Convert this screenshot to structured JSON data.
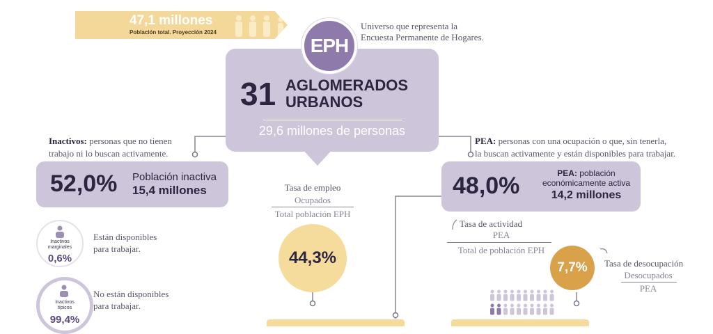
{
  "banner": {
    "value": "47,1 millones",
    "caption": "Población total. Proyección 2024",
    "icon": "people-icon",
    "color": "#f4d89a"
  },
  "eph": {
    "badge": "EPH",
    "desc_line1": "Universo que representa la",
    "desc_line2": "Encuesta Permanente de Hogares."
  },
  "main": {
    "number": "31",
    "label_line1": "AGLOMERADOS",
    "label_line2": "URBANOS",
    "persons": "29,6 millones de personas"
  },
  "inactive": {
    "def_term": "Inactivos:",
    "def_rest": " personas que no tienen",
    "def_line2": "trabajo ni lo buscan activamente.",
    "pct": "52,0%",
    "label": "Población inactiva",
    "value": "15,4 millones"
  },
  "pea": {
    "def_term": "PEA:",
    "def_rest": " personas con una ocupación o que, sin tenerla,",
    "def_line2": "la buscan activamente y están disponibles para trabajar.",
    "pct": "48,0%",
    "label_term": "PEA:",
    "label_rest": " población",
    "label_line2": "económicamente activa",
    "value": "14,2 millones"
  },
  "employment": {
    "title": "Tasa de empleo",
    "numerator": "Ocupados",
    "denominator": "Total población EPH",
    "pct": "44,3%"
  },
  "activity": {
    "title": "Tasa de actividad",
    "numerator": "PEA",
    "denominator": "Total de población EPH"
  },
  "unemployment": {
    "title": "Tasa de desocupación",
    "numerator": "Desocupados",
    "denominator": "PEA",
    "pct": "7,7%"
  },
  "marginal": {
    "label_line1": "Inactivos",
    "label_line2": "marginales",
    "pct": "0,6%",
    "text_line1": "Están disponibles",
    "text_line2": "para trabajar."
  },
  "typical": {
    "label_line1": "Inactivos",
    "label_line2": "típicos",
    "pct": "99,4%",
    "text_line1": "No están disponibles",
    "text_line2": "para trabajar."
  }
}
